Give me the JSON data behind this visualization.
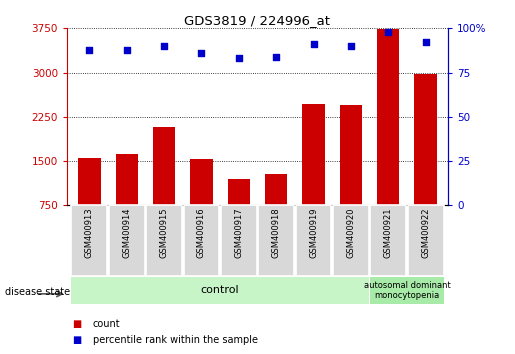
{
  "title": "GDS3819 / 224996_at",
  "samples": [
    "GSM400913",
    "GSM400914",
    "GSM400915",
    "GSM400916",
    "GSM400917",
    "GSM400918",
    "GSM400919",
    "GSM400920",
    "GSM400921",
    "GSM400922"
  ],
  "counts": [
    1560,
    1620,
    2080,
    1530,
    1190,
    1280,
    2470,
    2450,
    3740,
    2980
  ],
  "percentile_ranks": [
    88,
    88,
    90,
    86,
    83,
    84,
    91,
    90,
    98,
    92
  ],
  "ylim_left": [
    750,
    3750
  ],
  "ylim_right": [
    0,
    100
  ],
  "yticks_left": [
    750,
    1500,
    2250,
    3000,
    3750
  ],
  "yticks_right": [
    0,
    25,
    50,
    75,
    100
  ],
  "bar_color": "#cc0000",
  "dot_color": "#0000cc",
  "control_samples": 8,
  "disease_samples": 2,
  "control_label": "control",
  "disease_label": "autosomal dominant\nmonocytopenia",
  "control_bg": "#c8f5c8",
  "disease_bg": "#a8eba8",
  "xtick_bg": "#d8d8d8",
  "legend_count_color": "#cc0000",
  "legend_pct_color": "#0000cc"
}
